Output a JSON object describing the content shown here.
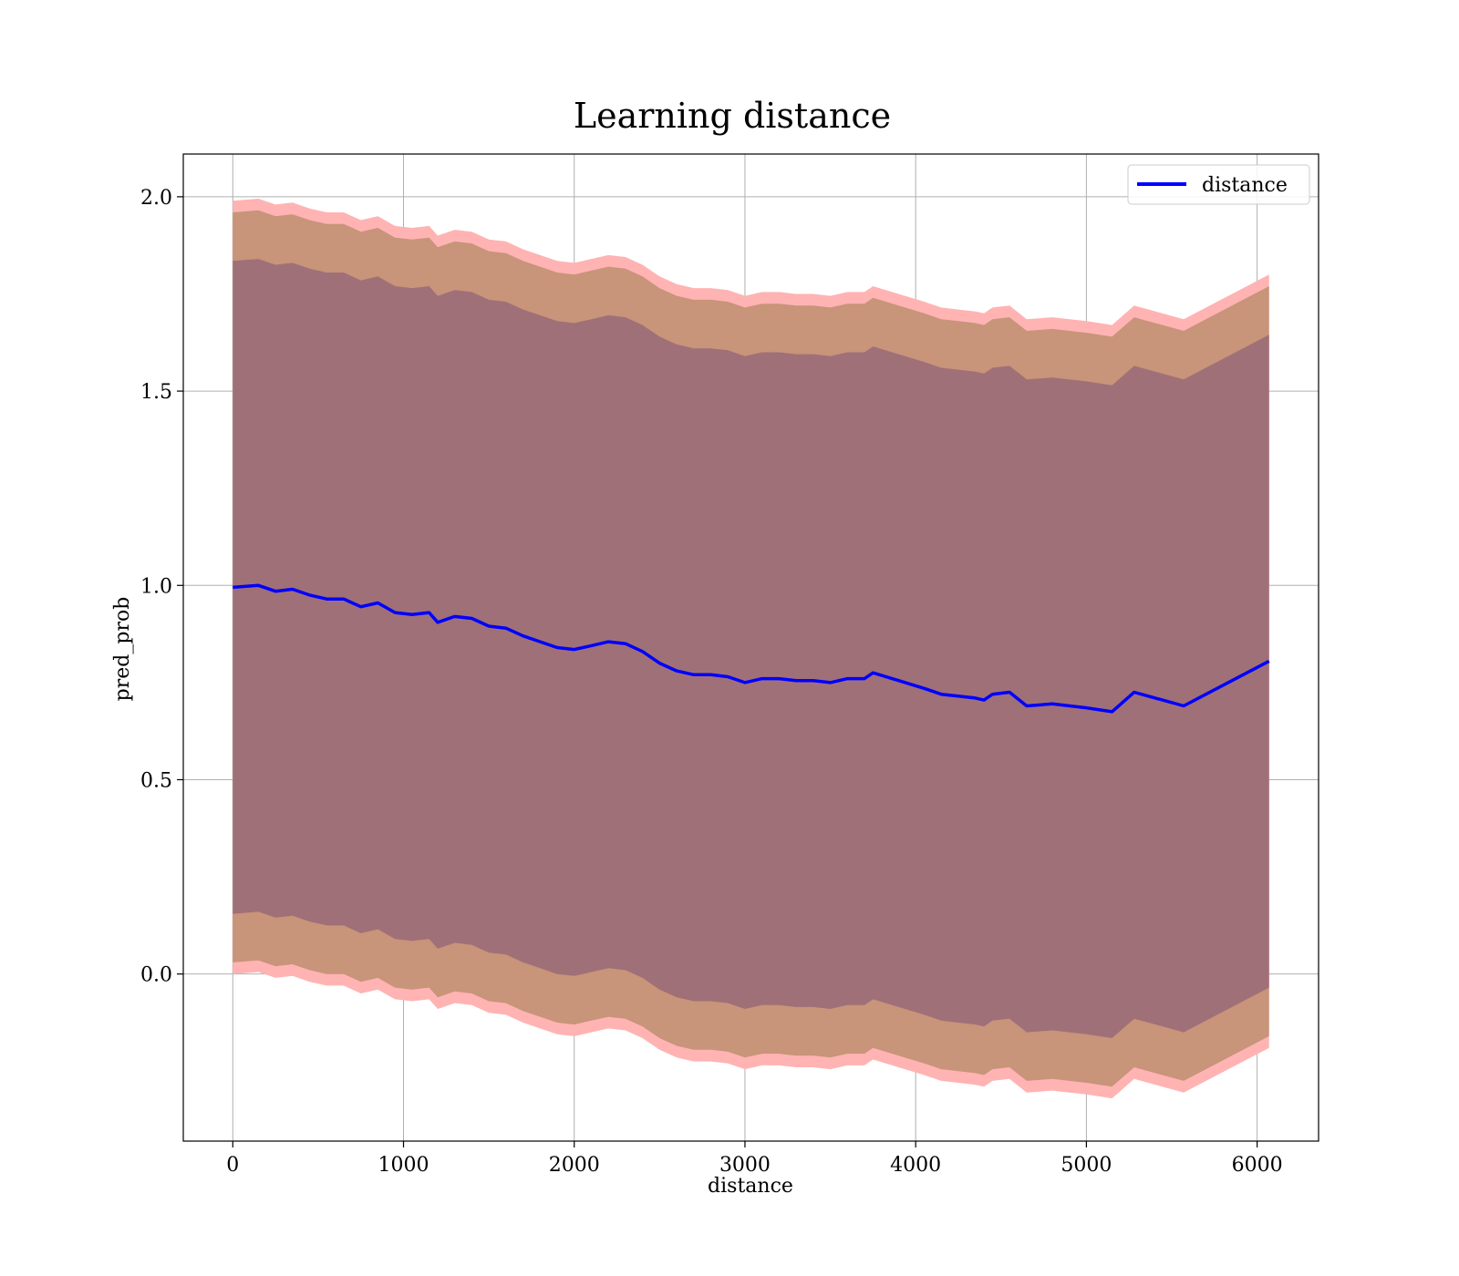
{
  "chart_data": {
    "type": "line",
    "title": "Learning distance",
    "xlabel": "distance",
    "ylabel": "pred_prob",
    "xlim": [
      -290,
      6360
    ],
    "ylim": [
      -0.43,
      2.11
    ],
    "x_ticks": [
      0,
      1000,
      2000,
      3000,
      4000,
      5000,
      6000
    ],
    "x_tick_labels": [
      "0",
      "1000",
      "2000",
      "3000",
      "4000",
      "5000",
      "6000"
    ],
    "y_ticks": [
      0.0,
      0.5,
      1.0,
      1.5,
      2.0
    ],
    "y_tick_labels": [
      "0.0",
      "0.5",
      "1.0",
      "1.5",
      "2.0"
    ],
    "grid": true,
    "legend_position": "top-right",
    "colors": {
      "line": "#0000ff",
      "band_outer": "#ffb3b3",
      "band_middle": "#c8947a",
      "band_inner": "#a07078",
      "grid": "#b0b0b0"
    },
    "series": [
      {
        "name": "distance",
        "x": [
          0,
          150,
          250,
          350,
          450,
          550,
          650,
          750,
          850,
          950,
          1050,
          1150,
          1200,
          1300,
          1400,
          1500,
          1600,
          1700,
          1800,
          1900,
          2000,
          2100,
          2200,
          2300,
          2400,
          2500,
          2600,
          2700,
          2800,
          2900,
          3000,
          3100,
          3200,
          3300,
          3400,
          3500,
          3600,
          3700,
          3750,
          3900,
          4050,
          4150,
          4250,
          4350,
          4400,
          4450,
          4550,
          4650,
          4800,
          5000,
          5150,
          5280,
          5570,
          6070
        ],
        "y": [
          0.995,
          1.0,
          0.985,
          0.99,
          0.975,
          0.965,
          0.965,
          0.945,
          0.955,
          0.93,
          0.925,
          0.93,
          0.905,
          0.92,
          0.915,
          0.895,
          0.89,
          0.87,
          0.855,
          0.84,
          0.835,
          0.845,
          0.855,
          0.85,
          0.83,
          0.8,
          0.78,
          0.77,
          0.77,
          0.765,
          0.75,
          0.76,
          0.76,
          0.755,
          0.755,
          0.75,
          0.76,
          0.76,
          0.775,
          0.755,
          0.735,
          0.72,
          0.715,
          0.71,
          0.705,
          0.72,
          0.725,
          0.69,
          0.695,
          0.685,
          0.675,
          0.725,
          0.69,
          0.805
        ],
        "band_inner_halfwidth": 0.84,
        "band_middle_halfwidth": 0.965,
        "band_outer_halfwidth": 0.995
      }
    ]
  }
}
